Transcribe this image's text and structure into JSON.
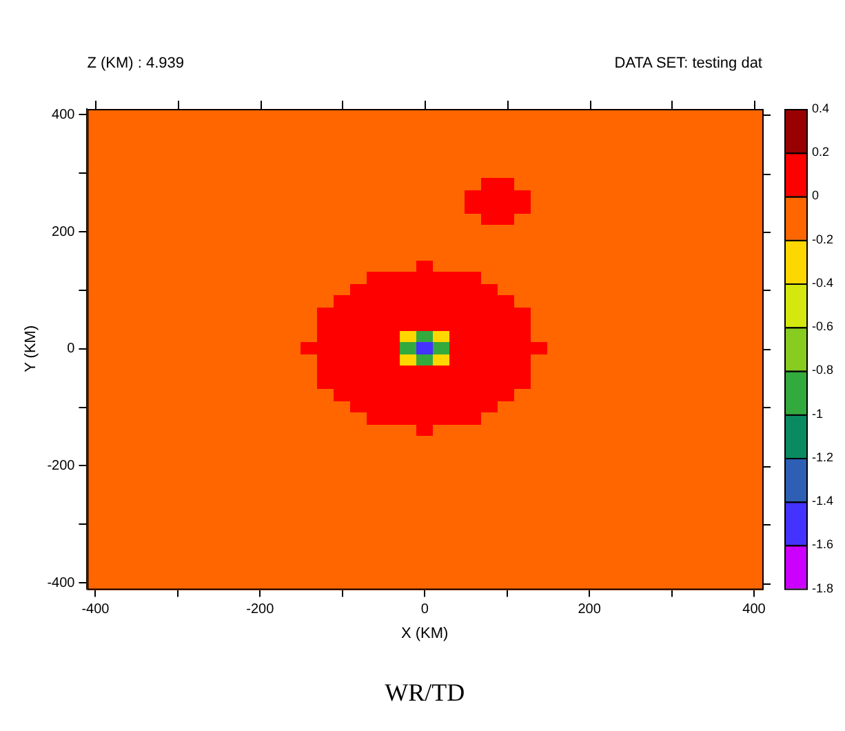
{
  "chart_data": {
    "type": "heatmap",
    "title": "WR/TD",
    "subtitle": "Z (KM) : 4.939",
    "annotations": [
      "DATA SET: testing dat"
    ],
    "xlabel": "X (KM)",
    "ylabel": "Y (KM)",
    "clim": [
      -1.8,
      0.4
    ],
    "cticks": [
      -1.8,
      -1.6,
      -1.4,
      -1.2,
      -1,
      -0.8,
      -0.6,
      -0.4,
      -0.2,
      0,
      0.2,
      0.4
    ],
    "colors": [
      "#cc00ff",
      "#4433ff",
      "#2e5fb5",
      "#0a8a60",
      "#33aa3d",
      "#88cc22",
      "#d4e80f",
      "#ffd700",
      "#ff6600",
      "#ff0000",
      "#990000"
    ],
    "categories": [
      "-400",
      null,
      null,
      null,
      null,
      null,
      null,
      null,
      null,
      null,
      "-200",
      null,
      null,
      null,
      null,
      null,
      null,
      null,
      null,
      null,
      "0",
      null,
      null,
      null,
      null,
      null,
      null,
      null,
      null,
      null,
      "200",
      null,
      null,
      null,
      null,
      null,
      null,
      null,
      null,
      null,
      "400"
    ],
    "y_categories": [
      "400",
      null,
      null,
      null,
      null,
      null,
      null,
      null,
      null,
      null,
      "200",
      null,
      null,
      null,
      null,
      null,
      null,
      null,
      null,
      null,
      "0",
      null,
      null,
      null,
      null,
      null,
      null,
      null,
      null,
      null,
      "-200",
      null,
      null,
      null,
      null,
      null,
      null,
      null,
      null,
      null,
      "-400"
    ],
    "cells": [
      [
        -0.1,
        -0.1,
        -0.1,
        -0.1,
        -0.1,
        -0.1,
        -0.1,
        -0.1,
        -0.1,
        -0.1,
        -0.1,
        -0.1,
        -0.1,
        -0.1,
        -0.1,
        -0.1,
        -0.1,
        -0.1,
        -0.1,
        -0.1,
        -0.1,
        -0.1,
        -0.1,
        -0.1,
        -0.1,
        -0.1,
        -0.1,
        -0.1,
        -0.1,
        -0.1,
        -0.1,
        -0.1,
        -0.1,
        -0.1,
        -0.1,
        -0.1,
        -0.1,
        -0.1,
        -0.1,
        -0.1,
        -0.1
      ],
      [
        -0.1,
        -0.1,
        -0.1,
        -0.1,
        -0.1,
        -0.1,
        -0.1,
        -0.1,
        -0.1,
        -0.1,
        -0.1,
        -0.1,
        -0.1,
        -0.1,
        -0.1,
        -0.1,
        -0.1,
        -0.1,
        -0.1,
        -0.1,
        -0.1,
        -0.1,
        -0.1,
        -0.1,
        -0.1,
        -0.1,
        -0.1,
        -0.1,
        -0.1,
        -0.1,
        -0.1,
        -0.1,
        -0.1,
        -0.1,
        -0.1,
        -0.1,
        -0.1,
        -0.1,
        -0.1,
        -0.1,
        -0.1
      ],
      [
        -0.1,
        -0.1,
        -0.1,
        -0.1,
        -0.1,
        -0.1,
        -0.1,
        -0.1,
        -0.1,
        -0.1,
        -0.1,
        -0.1,
        -0.1,
        -0.1,
        -0.1,
        -0.1,
        -0.1,
        -0.1,
        -0.1,
        -0.1,
        -0.1,
        -0.1,
        -0.1,
        -0.1,
        -0.1,
        -0.1,
        -0.1,
        -0.1,
        -0.1,
        -0.1,
        -0.1,
        -0.1,
        -0.1,
        -0.1,
        -0.1,
        -0.1,
        -0.1,
        -0.1,
        -0.1,
        -0.1,
        -0.1
      ],
      [
        -0.1,
        -0.1,
        -0.1,
        -0.1,
        -0.1,
        -0.1,
        -0.1,
        -0.1,
        -0.1,
        -0.1,
        -0.1,
        -0.1,
        -0.1,
        -0.1,
        -0.1,
        -0.1,
        -0.1,
        -0.1,
        -0.1,
        -0.1,
        -0.1,
        -0.1,
        -0.1,
        -0.1,
        -0.1,
        -0.1,
        -0.1,
        -0.1,
        -0.1,
        -0.1,
        -0.1,
        -0.1,
        -0.1,
        -0.1,
        -0.1,
        -0.1,
        -0.1,
        -0.1,
        -0.1,
        -0.1,
        -0.1
      ],
      [
        -0.1,
        -0.1,
        -0.1,
        -0.1,
        -0.1,
        -0.1,
        -0.1,
        -0.1,
        -0.1,
        -0.1,
        -0.1,
        -0.1,
        -0.1,
        -0.1,
        -0.1,
        -0.1,
        -0.1,
        -0.1,
        -0.1,
        -0.1,
        -0.1,
        -0.1,
        -0.1,
        -0.1,
        -0.1,
        -0.1,
        -0.1,
        -0.1,
        -0.1,
        -0.1,
        -0.1,
        -0.1,
        -0.1,
        -0.1,
        -0.1,
        -0.1,
        -0.1,
        -0.1,
        -0.1,
        -0.1,
        -0.1
      ],
      [
        -0.1,
        -0.1,
        -0.1,
        -0.1,
        -0.1,
        -0.1,
        -0.1,
        -0.1,
        -0.1,
        -0.1,
        -0.1,
        -0.1,
        -0.1,
        -0.1,
        -0.1,
        -0.1,
        -0.1,
        -0.1,
        -0.1,
        -0.1,
        -0.1,
        -0.1,
        -0.1,
        -0.1,
        -0.1,
        -0.1,
        -0.1,
        -0.1,
        -0.1,
        -0.1,
        -0.1,
        -0.1,
        -0.1,
        -0.1,
        -0.1,
        -0.1,
        -0.1,
        -0.1,
        -0.1,
        -0.1,
        -0.1
      ],
      [
        -0.1,
        -0.1,
        -0.1,
        -0.1,
        -0.1,
        -0.1,
        -0.1,
        -0.1,
        -0.1,
        -0.1,
        -0.1,
        -0.1,
        -0.1,
        -0.1,
        -0.1,
        -0.1,
        -0.1,
        -0.1,
        -0.1,
        -0.1,
        -0.1,
        -0.1,
        -0.1,
        -0.1,
        0.1,
        0.1,
        -0.1,
        -0.1,
        -0.1,
        -0.1,
        -0.1,
        -0.1,
        -0.1,
        -0.1,
        -0.1,
        -0.1,
        -0.1,
        -0.1,
        -0.1,
        -0.1,
        -0.1
      ],
      [
        -0.1,
        -0.1,
        -0.1,
        -0.1,
        -0.1,
        -0.1,
        -0.1,
        -0.1,
        -0.1,
        -0.1,
        -0.1,
        -0.1,
        -0.1,
        -0.1,
        -0.1,
        -0.1,
        -0.1,
        -0.1,
        -0.1,
        -0.1,
        -0.1,
        -0.1,
        -0.1,
        0.1,
        0.1,
        0.1,
        0.1,
        -0.1,
        -0.1,
        -0.1,
        -0.1,
        -0.1,
        -0.1,
        -0.1,
        -0.1,
        -0.1,
        -0.1,
        -0.1,
        -0.1,
        -0.1,
        -0.1
      ],
      [
        -0.1,
        -0.1,
        -0.1,
        -0.1,
        -0.1,
        -0.1,
        -0.1,
        -0.1,
        -0.1,
        -0.1,
        -0.1,
        -0.1,
        -0.1,
        -0.1,
        -0.1,
        -0.1,
        -0.1,
        -0.1,
        -0.1,
        -0.1,
        -0.1,
        -0.1,
        -0.1,
        0.1,
        0.1,
        0.1,
        0.1,
        -0.1,
        -0.1,
        -0.1,
        -0.1,
        -0.1,
        -0.1,
        -0.1,
        -0.1,
        -0.1,
        -0.1,
        -0.1,
        -0.1,
        -0.1,
        -0.1
      ],
      [
        -0.1,
        -0.1,
        -0.1,
        -0.1,
        -0.1,
        -0.1,
        -0.1,
        -0.1,
        -0.1,
        -0.1,
        -0.1,
        -0.1,
        -0.1,
        -0.1,
        -0.1,
        -0.1,
        -0.1,
        -0.1,
        -0.1,
        -0.1,
        -0.1,
        -0.1,
        -0.1,
        -0.1,
        0.1,
        0.1,
        -0.1,
        -0.1,
        -0.1,
        -0.1,
        -0.1,
        -0.1,
        -0.1,
        -0.1,
        -0.1,
        -0.1,
        -0.1,
        -0.1,
        -0.1,
        -0.1,
        -0.1
      ],
      [
        -0.1,
        -0.1,
        -0.1,
        -0.1,
        -0.1,
        -0.1,
        -0.1,
        -0.1,
        -0.1,
        -0.1,
        -0.1,
        -0.1,
        -0.1,
        -0.1,
        -0.1,
        -0.1,
        -0.1,
        -0.1,
        -0.1,
        -0.1,
        -0.1,
        -0.1,
        -0.1,
        -0.1,
        -0.1,
        -0.1,
        -0.1,
        -0.1,
        -0.1,
        -0.1,
        -0.1,
        -0.1,
        -0.1,
        -0.1,
        -0.1,
        -0.1,
        -0.1,
        -0.1,
        -0.1,
        -0.1,
        -0.1
      ],
      [
        -0.1,
        -0.1,
        -0.1,
        -0.1,
        -0.1,
        -0.1,
        -0.1,
        -0.1,
        -0.1,
        -0.1,
        -0.1,
        -0.1,
        -0.1,
        -0.1,
        -0.1,
        -0.1,
        -0.1,
        -0.1,
        -0.1,
        -0.1,
        -0.1,
        -0.1,
        -0.1,
        -0.1,
        -0.1,
        -0.1,
        -0.1,
        -0.1,
        -0.1,
        -0.1,
        -0.1,
        -0.1,
        -0.1,
        -0.1,
        -0.1,
        -0.1,
        -0.1,
        -0.1,
        -0.1,
        -0.1,
        -0.1
      ],
      [
        -0.1,
        -0.1,
        -0.1,
        -0.1,
        -0.1,
        -0.1,
        -0.1,
        -0.1,
        -0.1,
        -0.1,
        -0.1,
        -0.1,
        -0.1,
        -0.1,
        -0.1,
        -0.1,
        -0.1,
        -0.1,
        -0.1,
        -0.1,
        -0.1,
        -0.1,
        -0.1,
        -0.1,
        -0.1,
        -0.1,
        -0.1,
        -0.1,
        -0.1,
        -0.1,
        -0.1,
        -0.1,
        -0.1,
        -0.1,
        -0.1,
        -0.1,
        -0.1,
        -0.1,
        -0.1,
        -0.1,
        -0.1
      ],
      [
        -0.1,
        -0.1,
        -0.1,
        -0.1,
        -0.1,
        -0.1,
        -0.1,
        -0.1,
        -0.1,
        -0.1,
        -0.1,
        -0.1,
        -0.1,
        -0.1,
        -0.1,
        -0.1,
        -0.1,
        -0.1,
        -0.1,
        -0.1,
        0.1,
        -0.1,
        -0.1,
        -0.1,
        -0.1,
        -0.1,
        -0.1,
        -0.1,
        -0.1,
        -0.1,
        -0.1,
        -0.1,
        -0.1,
        -0.1,
        -0.1,
        -0.1,
        -0.1,
        -0.1,
        -0.1,
        -0.1,
        -0.1
      ],
      [
        -0.1,
        -0.1,
        -0.1,
        -0.1,
        -0.1,
        -0.1,
        -0.1,
        -0.1,
        -0.1,
        -0.1,
        -0.1,
        -0.1,
        -0.1,
        -0.1,
        -0.1,
        -0.1,
        -0.1,
        0.1,
        0.1,
        0.1,
        0.1,
        0.1,
        0.1,
        0.1,
        -0.1,
        -0.1,
        -0.1,
        -0.1,
        -0.1,
        -0.1,
        -0.1,
        -0.1,
        -0.1,
        -0.1,
        -0.1,
        -0.1,
        -0.1,
        -0.1,
        -0.1,
        -0.1,
        -0.1
      ],
      [
        -0.1,
        -0.1,
        -0.1,
        -0.1,
        -0.1,
        -0.1,
        -0.1,
        -0.1,
        -0.1,
        -0.1,
        -0.1,
        -0.1,
        -0.1,
        -0.1,
        -0.1,
        -0.1,
        0.1,
        0.1,
        0.1,
        0.1,
        0.1,
        0.1,
        0.1,
        0.1,
        0.1,
        -0.1,
        -0.1,
        -0.1,
        -0.1,
        -0.1,
        -0.1,
        -0.1,
        -0.1,
        -0.1,
        -0.1,
        -0.1,
        -0.1,
        -0.1,
        -0.1,
        -0.1,
        -0.1
      ],
      [
        -0.1,
        -0.1,
        -0.1,
        -0.1,
        -0.1,
        -0.1,
        -0.1,
        -0.1,
        -0.1,
        -0.1,
        -0.1,
        -0.1,
        -0.1,
        -0.1,
        -0.1,
        0.1,
        0.1,
        0.1,
        0.1,
        0.1,
        0.1,
        0.1,
        0.1,
        0.1,
        0.1,
        0.1,
        -0.1,
        -0.1,
        -0.1,
        -0.1,
        -0.1,
        -0.1,
        -0.1,
        -0.1,
        -0.1,
        -0.1,
        -0.1,
        -0.1,
        -0.1,
        -0.1,
        -0.1
      ],
      [
        -0.1,
        -0.1,
        -0.1,
        -0.1,
        -0.1,
        -0.1,
        -0.1,
        -0.1,
        -0.1,
        -0.1,
        -0.1,
        -0.1,
        -0.1,
        -0.1,
        0.1,
        0.1,
        0.1,
        0.1,
        0.1,
        0.1,
        0.1,
        0.1,
        0.1,
        0.1,
        0.1,
        0.1,
        0.1,
        -0.1,
        -0.1,
        -0.1,
        -0.1,
        -0.1,
        -0.1,
        -0.1,
        -0.1,
        -0.1,
        -0.1,
        -0.1,
        -0.1,
        -0.1,
        -0.1
      ],
      [
        -0.1,
        -0.1,
        -0.1,
        -0.1,
        -0.1,
        -0.1,
        -0.1,
        -0.1,
        -0.1,
        -0.1,
        -0.1,
        -0.1,
        -0.1,
        -0.1,
        0.1,
        0.1,
        0.1,
        0.1,
        0.1,
        0.1,
        0.1,
        0.1,
        0.1,
        0.1,
        0.1,
        0.1,
        0.1,
        -0.1,
        -0.1,
        -0.1,
        -0.1,
        -0.1,
        -0.1,
        -0.1,
        -0.1,
        -0.1,
        -0.1,
        -0.1,
        -0.1,
        -0.1,
        -0.1
      ],
      [
        -0.1,
        -0.1,
        -0.1,
        -0.1,
        -0.1,
        -0.1,
        -0.1,
        -0.1,
        -0.1,
        -0.1,
        -0.1,
        -0.1,
        -0.1,
        -0.1,
        0.1,
        0.1,
        0.1,
        0.1,
        0.1,
        -0.3,
        -0.9,
        -0.3,
        0.1,
        0.1,
        0.1,
        0.1,
        0.1,
        -0.1,
        -0.1,
        -0.1,
        -0.1,
        -0.1,
        -0.1,
        -0.1,
        -0.1,
        -0.1,
        -0.1,
        -0.1,
        -0.1,
        -0.1,
        -0.1
      ],
      [
        -0.1,
        -0.1,
        -0.1,
        -0.1,
        -0.1,
        -0.1,
        -0.1,
        -0.1,
        -0.1,
        -0.1,
        -0.1,
        -0.1,
        -0.1,
        0.1,
        0.1,
        0.1,
        0.1,
        0.1,
        0.1,
        -0.9,
        -1.5,
        -0.9,
        0.1,
        0.1,
        0.1,
        0.1,
        0.1,
        0.1,
        -0.1,
        -0.1,
        -0.1,
        -0.1,
        -0.1,
        -0.1,
        -0.1,
        -0.1,
        -0.1,
        -0.1,
        -0.1,
        -0.1,
        -0.1
      ],
      [
        -0.1,
        -0.1,
        -0.1,
        -0.1,
        -0.1,
        -0.1,
        -0.1,
        -0.1,
        -0.1,
        -0.1,
        -0.1,
        -0.1,
        -0.1,
        -0.1,
        0.1,
        0.1,
        0.1,
        0.1,
        0.1,
        -0.3,
        -0.9,
        -0.3,
        0.1,
        0.1,
        0.1,
        0.1,
        0.1,
        -0.1,
        -0.1,
        -0.1,
        -0.1,
        -0.1,
        -0.1,
        -0.1,
        -0.1,
        -0.1,
        -0.1,
        -0.1,
        -0.1,
        -0.1,
        -0.1
      ],
      [
        -0.1,
        -0.1,
        -0.1,
        -0.1,
        -0.1,
        -0.1,
        -0.1,
        -0.1,
        -0.1,
        -0.1,
        -0.1,
        -0.1,
        -0.1,
        -0.1,
        0.1,
        0.1,
        0.1,
        0.1,
        0.1,
        0.1,
        0.1,
        0.1,
        0.1,
        0.1,
        0.1,
        0.1,
        0.1,
        -0.1,
        -0.1,
        -0.1,
        -0.1,
        -0.1,
        -0.1,
        -0.1,
        -0.1,
        -0.1,
        -0.1,
        -0.1,
        -0.1,
        -0.1,
        -0.1
      ],
      [
        -0.1,
        -0.1,
        -0.1,
        -0.1,
        -0.1,
        -0.1,
        -0.1,
        -0.1,
        -0.1,
        -0.1,
        -0.1,
        -0.1,
        -0.1,
        -0.1,
        0.1,
        0.1,
        0.1,
        0.1,
        0.1,
        0.1,
        0.1,
        0.1,
        0.1,
        0.1,
        0.1,
        0.1,
        0.1,
        -0.1,
        -0.1,
        -0.1,
        -0.1,
        -0.1,
        -0.1,
        -0.1,
        -0.1,
        -0.1,
        -0.1,
        -0.1,
        -0.1,
        -0.1,
        -0.1
      ],
      [
        -0.1,
        -0.1,
        -0.1,
        -0.1,
        -0.1,
        -0.1,
        -0.1,
        -0.1,
        -0.1,
        -0.1,
        -0.1,
        -0.1,
        -0.1,
        -0.1,
        -0.1,
        0.1,
        0.1,
        0.1,
        0.1,
        0.1,
        0.1,
        0.1,
        0.1,
        0.1,
        0.1,
        0.1,
        -0.1,
        -0.1,
        -0.1,
        -0.1,
        -0.1,
        -0.1,
        -0.1,
        -0.1,
        -0.1,
        -0.1,
        -0.1,
        -0.1,
        -0.1,
        -0.1,
        -0.1
      ],
      [
        -0.1,
        -0.1,
        -0.1,
        -0.1,
        -0.1,
        -0.1,
        -0.1,
        -0.1,
        -0.1,
        -0.1,
        -0.1,
        -0.1,
        -0.1,
        -0.1,
        -0.1,
        -0.1,
        0.1,
        0.1,
        0.1,
        0.1,
        0.1,
        0.1,
        0.1,
        0.1,
        0.1,
        -0.1,
        -0.1,
        -0.1,
        -0.1,
        -0.1,
        -0.1,
        -0.1,
        -0.1,
        -0.1,
        -0.1,
        -0.1,
        -0.1,
        -0.1,
        -0.1,
        -0.1,
        -0.1
      ],
      [
        -0.1,
        -0.1,
        -0.1,
        -0.1,
        -0.1,
        -0.1,
        -0.1,
        -0.1,
        -0.1,
        -0.1,
        -0.1,
        -0.1,
        -0.1,
        -0.1,
        -0.1,
        -0.1,
        -0.1,
        0.1,
        0.1,
        0.1,
        0.1,
        0.1,
        0.1,
        0.1,
        -0.1,
        -0.1,
        -0.1,
        -0.1,
        -0.1,
        -0.1,
        -0.1,
        -0.1,
        -0.1,
        -0.1,
        -0.1,
        -0.1,
        -0.1,
        -0.1,
        -0.1,
        -0.1,
        -0.1
      ],
      [
        -0.1,
        -0.1,
        -0.1,
        -0.1,
        -0.1,
        -0.1,
        -0.1,
        -0.1,
        -0.1,
        -0.1,
        -0.1,
        -0.1,
        -0.1,
        -0.1,
        -0.1,
        -0.1,
        -0.1,
        -0.1,
        -0.1,
        -0.1,
        0.1,
        -0.1,
        -0.1,
        -0.1,
        -0.1,
        -0.1,
        -0.1,
        -0.1,
        -0.1,
        -0.1,
        -0.1,
        -0.1,
        -0.1,
        -0.1,
        -0.1,
        -0.1,
        -0.1,
        -0.1,
        -0.1,
        -0.1,
        -0.1
      ],
      [
        -0.1,
        -0.1,
        -0.1,
        -0.1,
        -0.1,
        -0.1,
        -0.1,
        -0.1,
        -0.1,
        -0.1,
        -0.1,
        -0.1,
        -0.1,
        -0.1,
        -0.1,
        -0.1,
        -0.1,
        -0.1,
        -0.1,
        -0.1,
        -0.1,
        -0.1,
        -0.1,
        -0.1,
        -0.1,
        -0.1,
        -0.1,
        -0.1,
        -0.1,
        -0.1,
        -0.1,
        -0.1,
        -0.1,
        -0.1,
        -0.1,
        -0.1,
        -0.1,
        -0.1,
        -0.1,
        -0.1,
        -0.1
      ],
      [
        -0.1,
        -0.1,
        -0.1,
        -0.1,
        -0.1,
        -0.1,
        -0.1,
        -0.1,
        -0.1,
        -0.1,
        -0.1,
        -0.1,
        -0.1,
        -0.1,
        -0.1,
        -0.1,
        -0.1,
        -0.1,
        -0.1,
        -0.1,
        -0.1,
        -0.1,
        -0.1,
        -0.1,
        -0.1,
        -0.1,
        -0.1,
        -0.1,
        -0.1,
        -0.1,
        -0.1,
        -0.1,
        -0.1,
        -0.1,
        -0.1,
        -0.1,
        -0.1,
        -0.1,
        -0.1,
        -0.1,
        -0.1
      ],
      [
        -0.1,
        -0.1,
        -0.1,
        -0.1,
        -0.1,
        -0.1,
        -0.1,
        -0.1,
        -0.1,
        -0.1,
        -0.1,
        -0.1,
        -0.1,
        -0.1,
        -0.1,
        -0.1,
        -0.1,
        -0.1,
        -0.1,
        -0.1,
        -0.1,
        -0.1,
        -0.1,
        -0.1,
        -0.1,
        -0.1,
        -0.1,
        -0.1,
        -0.1,
        -0.1,
        -0.1,
        -0.1,
        -0.1,
        -0.1,
        -0.1,
        -0.1,
        -0.1,
        -0.1,
        -0.1,
        -0.1,
        -0.1
      ],
      [
        -0.1,
        -0.1,
        -0.1,
        -0.1,
        -0.1,
        -0.1,
        -0.1,
        -0.1,
        -0.1,
        -0.1,
        -0.1,
        -0.1,
        -0.1,
        -0.1,
        -0.1,
        -0.1,
        -0.1,
        -0.1,
        -0.1,
        -0.1,
        -0.1,
        -0.1,
        -0.1,
        -0.1,
        -0.1,
        -0.1,
        -0.1,
        -0.1,
        -0.1,
        -0.1,
        -0.1,
        -0.1,
        -0.1,
        -0.1,
        -0.1,
        -0.1,
        -0.1,
        -0.1,
        -0.1,
        -0.1,
        -0.1
      ],
      [
        -0.1,
        -0.1,
        -0.1,
        -0.1,
        -0.1,
        -0.1,
        -0.1,
        -0.1,
        -0.1,
        -0.1,
        -0.1,
        -0.1,
        -0.1,
        -0.1,
        -0.1,
        -0.1,
        -0.1,
        -0.1,
        -0.1,
        -0.1,
        -0.1,
        -0.1,
        -0.1,
        -0.1,
        -0.1,
        -0.1,
        -0.1,
        -0.1,
        -0.1,
        -0.1,
        -0.1,
        -0.1,
        -0.1,
        -0.1,
        -0.1,
        -0.1,
        -0.1,
        -0.1,
        -0.1,
        -0.1,
        -0.1
      ],
      [
        -0.1,
        -0.1,
        -0.1,
        -0.1,
        -0.1,
        -0.1,
        -0.1,
        -0.1,
        -0.1,
        -0.1,
        -0.1,
        -0.1,
        -0.1,
        -0.1,
        -0.1,
        -0.1,
        -0.1,
        -0.1,
        -0.1,
        -0.1,
        -0.1,
        -0.1,
        -0.1,
        -0.1,
        -0.1,
        -0.1,
        -0.1,
        -0.1,
        -0.1,
        -0.1,
        -0.1,
        -0.1,
        -0.1,
        -0.1,
        -0.1,
        -0.1,
        -0.1,
        -0.1,
        -0.1,
        -0.1,
        -0.1
      ],
      [
        -0.1,
        -0.1,
        -0.1,
        -0.1,
        -0.1,
        -0.1,
        -0.1,
        -0.1,
        -0.1,
        -0.1,
        -0.1,
        -0.1,
        -0.1,
        -0.1,
        -0.1,
        -0.1,
        -0.1,
        -0.1,
        -0.1,
        -0.1,
        -0.1,
        -0.1,
        -0.1,
        -0.1,
        -0.1,
        -0.1,
        -0.1,
        -0.1,
        -0.1,
        -0.1,
        -0.1,
        -0.1,
        -0.1,
        -0.1,
        -0.1,
        -0.1,
        -0.1,
        -0.1,
        -0.1,
        -0.1,
        -0.1
      ],
      [
        -0.1,
        -0.1,
        -0.1,
        -0.1,
        -0.1,
        -0.1,
        -0.1,
        -0.1,
        -0.1,
        -0.1,
        -0.1,
        -0.1,
        -0.1,
        -0.1,
        -0.1,
        -0.1,
        -0.1,
        -0.1,
        -0.1,
        -0.1,
        -0.1,
        -0.1,
        -0.1,
        -0.1,
        -0.1,
        -0.1,
        -0.1,
        -0.1,
        -0.1,
        -0.1,
        -0.1,
        -0.1,
        -0.1,
        -0.1,
        -0.1,
        -0.1,
        -0.1,
        -0.1,
        -0.1,
        -0.1,
        -0.1
      ],
      [
        -0.1,
        -0.1,
        -0.1,
        -0.1,
        -0.1,
        -0.1,
        -0.1,
        -0.1,
        -0.1,
        -0.1,
        -0.1,
        -0.1,
        -0.1,
        -0.1,
        -0.1,
        -0.1,
        -0.1,
        -0.1,
        -0.1,
        -0.1,
        -0.1,
        -0.1,
        -0.1,
        -0.1,
        -0.1,
        -0.1,
        -0.1,
        -0.1,
        -0.1,
        -0.1,
        -0.1,
        -0.1,
        -0.1,
        -0.1,
        -0.1,
        -0.1,
        -0.1,
        -0.1,
        -0.1,
        -0.1,
        -0.1
      ],
      [
        -0.1,
        -0.1,
        -0.1,
        -0.1,
        -0.1,
        -0.1,
        -0.1,
        -0.1,
        -0.1,
        -0.1,
        -0.1,
        -0.1,
        -0.1,
        -0.1,
        -0.1,
        -0.1,
        -0.1,
        -0.1,
        -0.1,
        -0.1,
        -0.1,
        -0.1,
        -0.1,
        -0.1,
        -0.1,
        -0.1,
        -0.1,
        -0.1,
        -0.1,
        -0.1,
        -0.1,
        -0.1,
        -0.1,
        -0.1,
        -0.1,
        -0.1,
        -0.1,
        -0.1,
        -0.1,
        -0.1,
        -0.1
      ],
      [
        -0.1,
        -0.1,
        -0.1,
        -0.1,
        -0.1,
        -0.1,
        -0.1,
        -0.1,
        -0.1,
        -0.1,
        -0.1,
        -0.1,
        -0.1,
        -0.1,
        -0.1,
        -0.1,
        -0.1,
        -0.1,
        -0.1,
        -0.1,
        -0.1,
        -0.1,
        -0.1,
        -0.1,
        -0.1,
        -0.1,
        -0.1,
        -0.1,
        -0.1,
        -0.1,
        -0.1,
        -0.1,
        -0.1,
        -0.1,
        -0.1,
        -0.1,
        -0.1,
        -0.1,
        -0.1,
        -0.1,
        -0.1
      ],
      [
        -0.1,
        -0.1,
        -0.1,
        -0.1,
        -0.1,
        -0.1,
        -0.1,
        -0.1,
        -0.1,
        -0.1,
        -0.1,
        -0.1,
        -0.1,
        -0.1,
        -0.1,
        -0.1,
        -0.1,
        -0.1,
        -0.1,
        -0.1,
        -0.1,
        -0.1,
        -0.1,
        -0.1,
        -0.1,
        -0.1,
        -0.1,
        -0.1,
        -0.1,
        -0.1,
        -0.1,
        -0.1,
        -0.1,
        -0.1,
        -0.1,
        -0.1,
        -0.1,
        -0.1,
        -0.1,
        -0.1,
        -0.1
      ],
      [
        -0.1,
        -0.1,
        -0.1,
        -0.1,
        -0.1,
        -0.1,
        -0.1,
        -0.1,
        -0.1,
        -0.1,
        -0.1,
        -0.1,
        -0.1,
        -0.1,
        -0.1,
        -0.1,
        -0.1,
        -0.1,
        -0.1,
        -0.1,
        -0.1,
        -0.1,
        -0.1,
        -0.1,
        -0.1,
        -0.1,
        -0.1,
        -0.1,
        -0.1,
        -0.1,
        -0.1,
        -0.1,
        -0.1,
        -0.1,
        -0.1,
        -0.1,
        -0.1,
        -0.1,
        -0.1,
        -0.1,
        -0.1
      ]
    ]
  }
}
